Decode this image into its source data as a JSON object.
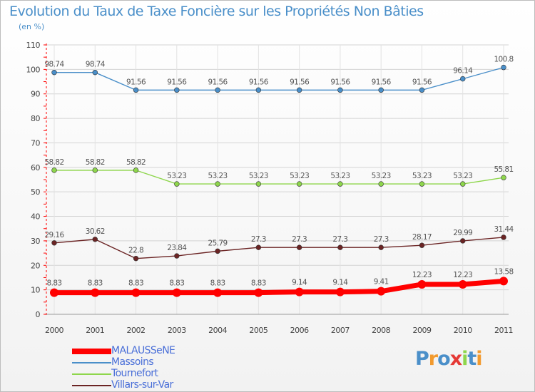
{
  "title": "Evolution du Taux de Taxe Foncière sur les Propriétés Non Bâties",
  "unit_label": "(en %)",
  "logo": {
    "text": "Proxiti"
  },
  "colors": {
    "malaussene": "#ff0000",
    "massoins": "#4a8fc9",
    "tournefort": "#8ed64c",
    "villars": "#6b2424"
  },
  "chart_data": {
    "type": "line",
    "title": "Evolution du Taux de Taxe Foncière sur les Propriétés Non Bâties",
    "ylabel": "(en %)",
    "xlabel": "",
    "ylim": [
      0,
      110
    ],
    "yticks": [
      0,
      10,
      20,
      30,
      40,
      50,
      60,
      70,
      80,
      90,
      100,
      110
    ],
    "grid": true,
    "x": [
      "2000",
      "2001",
      "2002",
      "2003",
      "2004",
      "2005",
      "2006",
      "2007",
      "2008",
      "2009",
      "2010",
      "2011"
    ],
    "series": [
      {
        "key": "massoins",
        "name": "Massoins",
        "values": [
          98.74,
          98.74,
          91.56,
          91.56,
          91.56,
          91.56,
          91.56,
          91.56,
          91.56,
          91.56,
          96.14,
          100.8
        ],
        "labels": [
          "98.74",
          "98.74",
          "91.56",
          "91.56",
          "91.56",
          "91.56",
          "91.56",
          "91.56",
          "91.56",
          "91.56",
          "96.14",
          "100.8"
        ]
      },
      {
        "key": "tournefort",
        "name": "Tournefort",
        "values": [
          58.82,
          58.82,
          58.82,
          53.23,
          53.23,
          53.23,
          53.23,
          53.23,
          53.23,
          53.23,
          53.23,
          55.81
        ],
        "labels": [
          "58.82",
          "58.82",
          "58.82",
          "53.23",
          "53.23",
          "53.23",
          "53.23",
          "53.23",
          "53.23",
          "53.23",
          "53.23",
          "55.81"
        ]
      },
      {
        "key": "villars",
        "name": "Villars-sur-Var",
        "values": [
          29.16,
          30.62,
          22.8,
          23.84,
          25.79,
          27.3,
          27.3,
          27.3,
          27.3,
          28.17,
          29.99,
          31.44
        ],
        "labels": [
          "29.16",
          "30.62",
          "22.8",
          "23.84",
          "25.79",
          "27.3",
          "27.3",
          "27.3",
          "27.3",
          "28.17",
          "29.99",
          "31.44"
        ]
      },
      {
        "key": "malaussene",
        "name": "MALAUSSeNE",
        "values": [
          8.83,
          8.83,
          8.83,
          8.83,
          8.83,
          8.83,
          9.14,
          9.14,
          9.41,
          12.23,
          12.23,
          13.58
        ],
        "labels": [
          "8.83",
          "8.83",
          "8.83",
          "8.83",
          "8.83",
          "8.83",
          "9.14",
          "9.14",
          "9.41",
          "12.23",
          "12.23",
          "13.58"
        ]
      }
    ],
    "legend": [
      {
        "key": "malaussene",
        "label": "MALAUSSeNE"
      },
      {
        "key": "massoins",
        "label": "Massoins"
      },
      {
        "key": "tournefort",
        "label": "Tournefort"
      },
      {
        "key": "villars",
        "label": "Villars-sur-Var"
      }
    ],
    "legend_position": "bottom-left"
  }
}
